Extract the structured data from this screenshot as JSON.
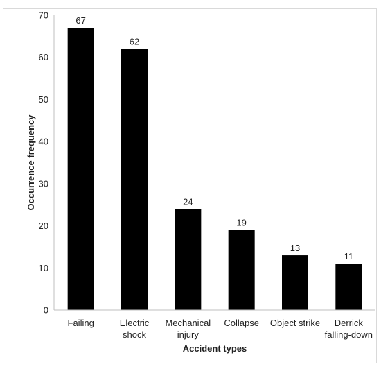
{
  "chart_data": {
    "type": "bar",
    "title": "",
    "xlabel": "Accident types",
    "ylabel": "Occurrence frequency",
    "categories": [
      [
        "Failing"
      ],
      [
        "Electric",
        "shock"
      ],
      [
        "Mechanical",
        "injury"
      ],
      [
        "Collapse"
      ],
      [
        "Object strike"
      ],
      [
        "Derrick",
        "falling-down"
      ]
    ],
    "values": [
      67,
      62,
      24,
      19,
      13,
      11
    ],
    "ylim": [
      0,
      70
    ],
    "yticks": [
      0,
      10,
      20,
      30,
      40,
      50,
      60,
      70
    ],
    "grid": false,
    "legend": "none",
    "bar_color": "#000000",
    "data_labels": true
  }
}
